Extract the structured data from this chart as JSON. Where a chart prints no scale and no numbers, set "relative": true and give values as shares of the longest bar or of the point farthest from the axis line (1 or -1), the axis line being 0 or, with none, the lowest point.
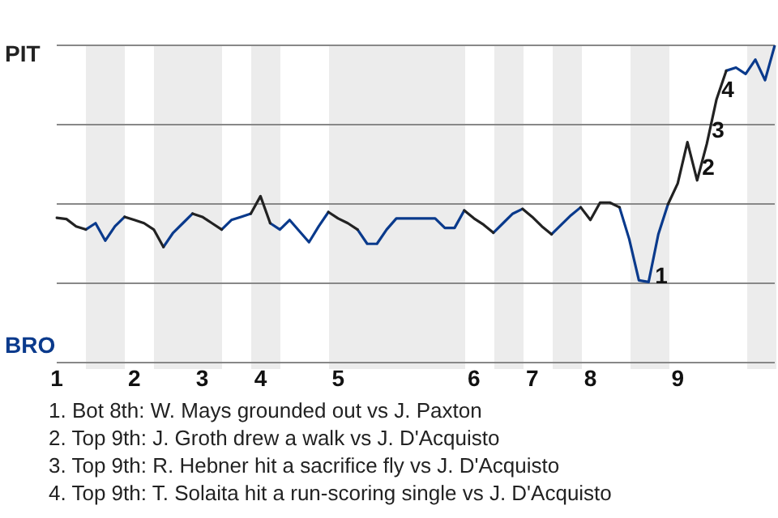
{
  "chart_data": {
    "type": "line",
    "categories": [
      "1",
      null,
      null,
      null,
      null,
      null,
      null,
      null,
      "2",
      null,
      null,
      null,
      null,
      null,
      null,
      "3",
      null,
      null,
      null,
      null,
      null,
      "4",
      null,
      null,
      null,
      null,
      null,
      null,
      null,
      "5",
      null,
      null,
      null,
      null,
      null,
      null,
      null,
      null,
      null,
      null,
      null,
      null,
      null,
      "6",
      null,
      null,
      null,
      null,
      null,
      "7",
      null,
      null,
      null,
      null,
      null,
      "8",
      null,
      null,
      null,
      null,
      null,
      null,
      null,
      null,
      "9",
      null,
      null,
      null,
      null,
      null,
      null,
      null,
      null,
      null,
      null
    ],
    "series": [
      {
        "name": "PIT",
        "color": "#222222",
        "values": [
          0.457,
          0.453,
          0.43,
          0.42,
          null,
          null,
          null,
          0.46,
          0.45,
          0.44,
          0.42,
          0.365,
          null,
          null,
          0.47,
          0.46,
          0.44,
          0.42,
          null,
          null,
          0.47,
          0.525,
          0.44,
          null,
          null,
          null,
          null,
          null,
          0.475,
          0.455,
          0.44,
          0.42,
          null,
          null,
          null,
          null,
          null,
          null,
          null,
          null,
          null,
          null,
          0.48,
          0.455,
          0.435,
          0.41,
          null,
          null,
          0.485,
          0.46,
          0.43,
          0.405,
          null,
          null,
          0.49,
          0.45,
          0.505,
          0.505,
          0.49,
          null,
          null,
          null,
          null,
          0.5,
          0.565,
          0.695,
          0.575,
          0.69,
          0.83,
          0.92,
          null,
          null,
          null,
          null,
          null
        ]
      },
      {
        "name": "BRO",
        "color": "#0a3a8c",
        "values": [
          null,
          null,
          null,
          0.42,
          0.44,
          0.385,
          0.43,
          0.46,
          null,
          null,
          null,
          0.365,
          0.41,
          0.44,
          0.47,
          null,
          null,
          0.42,
          0.45,
          0.46,
          0.47,
          null,
          0.44,
          0.42,
          0.45,
          0.415,
          0.38,
          0.43,
          0.475,
          null,
          null,
          0.42,
          0.375,
          0.375,
          0.42,
          0.455,
          0.455,
          0.455,
          0.455,
          0.455,
          0.425,
          0.425,
          0.48,
          null,
          null,
          0.41,
          0.44,
          0.47,
          0.485,
          null,
          null,
          0.405,
          0.435,
          0.465,
          0.49,
          null,
          null,
          null,
          0.49,
          0.39,
          0.26,
          0.255,
          0.405,
          0.5,
          null,
          null,
          null,
          null,
          null,
          0.92,
          0.93,
          0.91,
          0.955,
          0.89,
          1.0
        ]
      }
    ],
    "relative": true,
    "grid": "y",
    "legend": false,
    "marker": "none",
    "line_style": "solid",
    "annotations": [
      "1",
      "2",
      "3",
      "4",
      "1. Bot 8th: W. Mays grounded out vs J. Paxton",
      "2. Top 9th: J. Groth drew a walk vs J. D'Acquisto",
      "3. Top 9th: R. Hebner hit a sacrifice fly vs J. D'Acquisto",
      "4. Top 9th: T. Solaita hit a run-scoring single vs J. D'Acquisto"
    ]
  }
}
